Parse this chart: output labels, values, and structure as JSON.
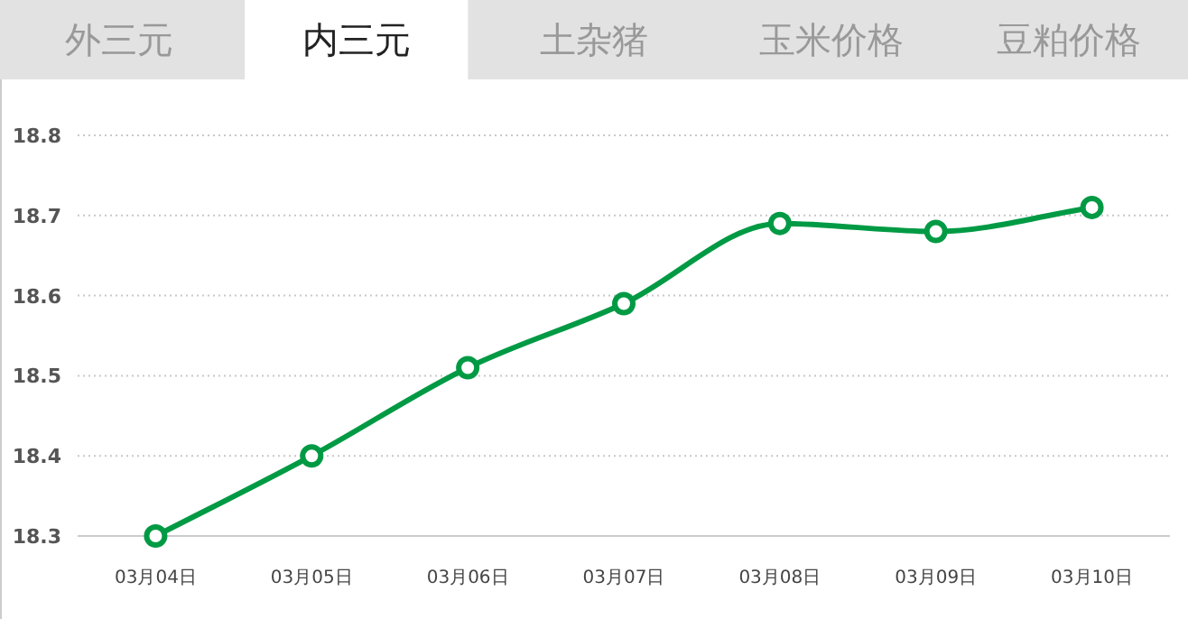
{
  "chart_data": {
    "type": "line",
    "title": "内三元",
    "annotations": [
      "外三元",
      "土杂猪",
      "玉米价格",
      "豆粕价格"
    ],
    "categories": [
      "03月04日",
      "03月05日",
      "03月06日",
      "03月07日",
      "03月08日",
      "03月09日",
      "03月10日"
    ],
    "series": [
      {
        "color": "#009a44",
        "values": [
          18.3,
          18.4,
          18.51,
          18.59,
          18.69,
          18.68,
          18.71
        ]
      }
    ],
    "ylim": [
      18.3,
      18.8
    ],
    "yticks": [
      18.3,
      18.4,
      18.5,
      18.6,
      18.7,
      18.8
    ],
    "grid": "y",
    "marker": "circle",
    "line_style": "solid"
  }
}
